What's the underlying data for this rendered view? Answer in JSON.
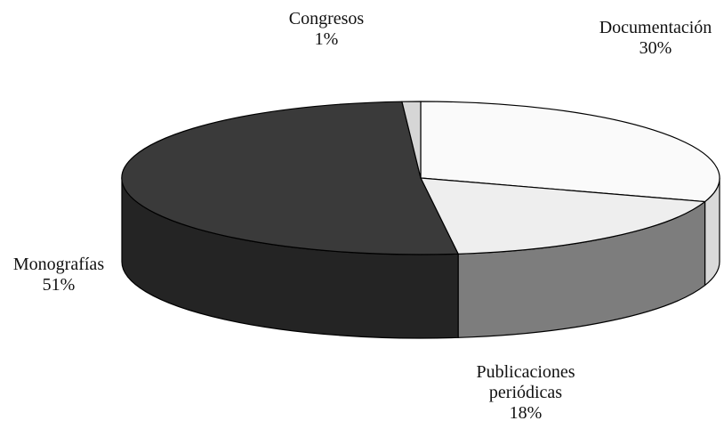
{
  "chart_data": {
    "type": "pie",
    "title": "",
    "slices": [
      {
        "label": "Documentación",
        "label_lines": [
          "Documentación"
        ],
        "value": 30,
        "value_label": "30%",
        "color": "#fafafa",
        "side_color": "#d9d9d9"
      },
      {
        "label": "Publicaciones periódicas",
        "label_lines": [
          "Publicaciones",
          "periódicas"
        ],
        "value": 18,
        "value_label": "18%",
        "color": "#eeeeee",
        "side_color": "#7d7d7d"
      },
      {
        "label": "Monografías",
        "label_lines": [
          "Monografías"
        ],
        "value": 51,
        "value_label": "51%",
        "color": "#3a3a3a",
        "side_color": "#242424"
      },
      {
        "label": "Congresos",
        "label_lines": [
          "Congresos"
        ],
        "value": 1,
        "value_label": "1%",
        "color": "#d6d6d6",
        "side_color": "#bdbdbd"
      }
    ],
    "legend": "none",
    "style": "3d"
  }
}
